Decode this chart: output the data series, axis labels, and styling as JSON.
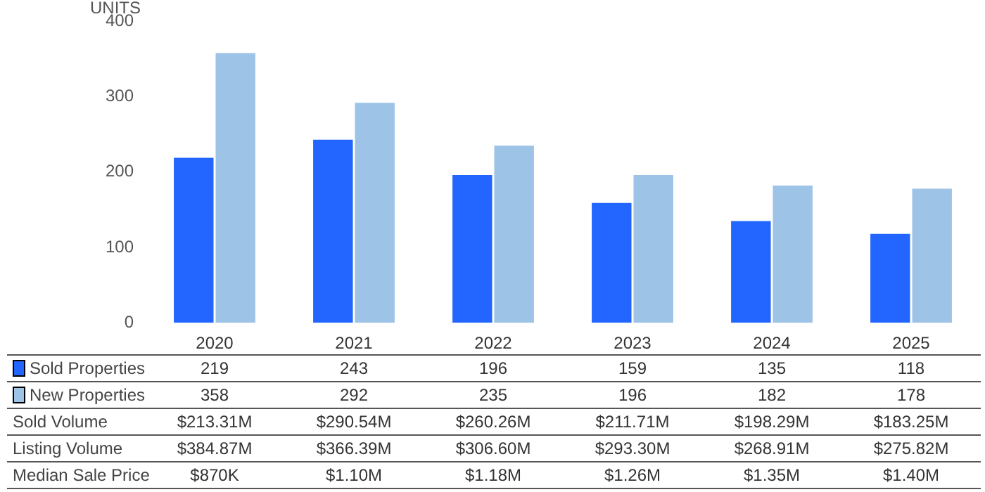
{
  "chart_data": {
    "type": "bar",
    "ylabel": "UNITS",
    "categories": [
      "2020",
      "2021",
      "2022",
      "2023",
      "2024",
      "2025"
    ],
    "series": [
      {
        "name": "Sold Properties",
        "color": "#2266ff",
        "values": [
          219,
          243,
          196,
          159,
          135,
          118
        ]
      },
      {
        "name": "New Properties",
        "color": "#9dc3e6",
        "values": [
          358,
          292,
          235,
          196,
          182,
          178
        ]
      }
    ],
    "ylim": [
      0,
      400
    ],
    "yticks": [
      0,
      100,
      200,
      300,
      400
    ],
    "grid": false,
    "legend": "bottom",
    "data_labels": true,
    "annotations": [
      "Sold Volume",
      "$213.31M",
      "$290.54M",
      "$260.26M",
      "$211.71M",
      "$198.29M",
      "$183.25M",
      "Listing Volume",
      "$384.87M",
      "$366.39M",
      "$306.60M",
      "$293.30M",
      "$268.91M",
      "$275.82M",
      "Median Sale Price",
      "$870K",
      "$1.10M",
      "$1.18M",
      "$1.26M",
      "$1.35M",
      "$1.40M"
    ]
  }
}
